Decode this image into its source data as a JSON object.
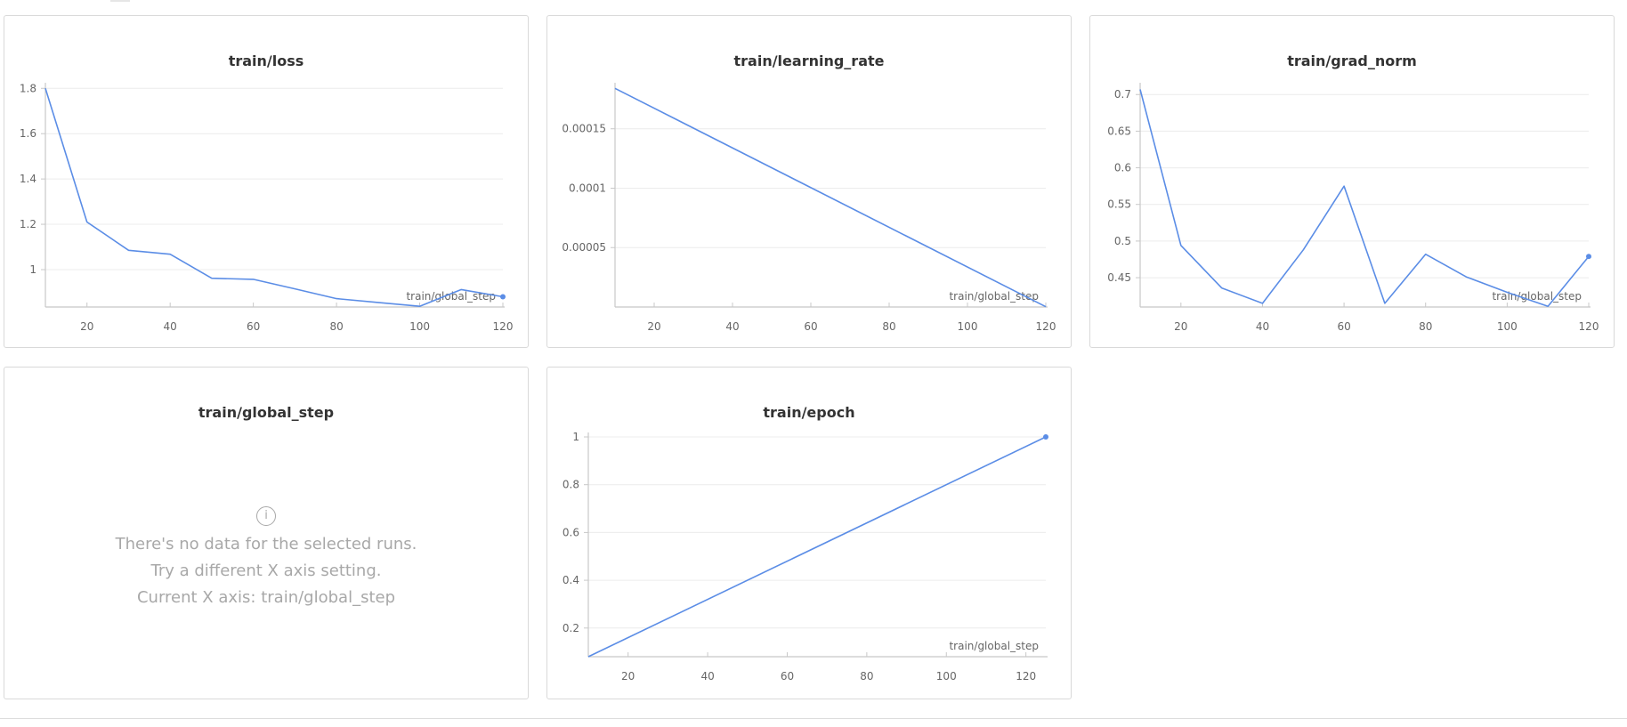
{
  "charts": [
    {
      "title": "train/loss",
      "xlabel": "train/global_step",
      "x": [
        10,
        20,
        30,
        40,
        50,
        60,
        70,
        80,
        90,
        100,
        110,
        120
      ],
      "y": [
        1.8,
        1.21,
        1.085,
        1.068,
        0.962,
        0.957,
        0.915,
        0.872,
        0.855,
        0.838,
        0.912,
        0.88
      ],
      "xlim": [
        10,
        120
      ],
      "ylim": [
        0.835,
        1.805
      ],
      "xticks": [
        20,
        40,
        60,
        80,
        100,
        120
      ],
      "yticks": [
        1,
        1.2,
        1.4,
        1.6,
        1.8
      ],
      "ytick_labels": [
        "1",
        "1.2",
        "1.4",
        "1.6",
        "1.8"
      ],
      "end_marker": true
    },
    {
      "title": "train/learning_rate",
      "xlabel": "train/global_step",
      "x": [
        10,
        120
      ],
      "y": [
        0.000184,
        2e-07
      ],
      "xlim": [
        10,
        120
      ],
      "ylim": [
        0,
        0.000185
      ],
      "xticks": [
        20,
        40,
        60,
        80,
        100,
        120
      ],
      "yticks": [
        5e-05,
        0.0001,
        0.00015
      ],
      "ytick_labels": [
        "0.00005",
        "0.0001",
        "0.00015"
      ],
      "end_marker": false
    },
    {
      "title": "train/grad_norm",
      "xlabel": "train/global_step",
      "x": [
        10,
        20,
        30,
        40,
        50,
        60,
        70,
        80,
        90,
        100,
        110,
        120
      ],
      "y": [
        0.707,
        0.494,
        0.436,
        0.415,
        0.488,
        0.575,
        0.415,
        0.482,
        0.451,
        0.43,
        0.411,
        0.479
      ],
      "xlim": [
        10,
        120
      ],
      "ylim": [
        0.41,
        0.71
      ],
      "xticks": [
        20,
        40,
        60,
        80,
        100,
        120
      ],
      "yticks": [
        0.45,
        0.5,
        0.55,
        0.6,
        0.65,
        0.7
      ],
      "ytick_labels": [
        "0.45",
        "0.5",
        "0.55",
        "0.6",
        "0.65",
        "0.7"
      ],
      "end_marker": true
    },
    {
      "title": "train/epoch",
      "xlabel": "train/global_step",
      "x": [
        10,
        125
      ],
      "y": [
        0.08,
        1.0
      ],
      "xlim": [
        10,
        125
      ],
      "ylim": [
        0.08,
        1.0
      ],
      "xticks": [
        20,
        40,
        60,
        80,
        100,
        120
      ],
      "yticks": [
        0.2,
        0.4,
        0.6,
        0.8,
        1
      ],
      "ytick_labels": [
        "0.2",
        "0.4",
        "0.6",
        "0.8",
        "1"
      ],
      "end_marker": true
    }
  ],
  "empty_panel": {
    "title": "train/global_step",
    "icon": "info-icon",
    "lines": [
      "There's no data for the selected runs.",
      "Try a different X axis setting.",
      "Current X axis: train/global_step"
    ]
  },
  "colors": {
    "line": "#5b8de6",
    "grid": "#ececec",
    "axis": "#c8c8c8",
    "tick": "#666666"
  }
}
